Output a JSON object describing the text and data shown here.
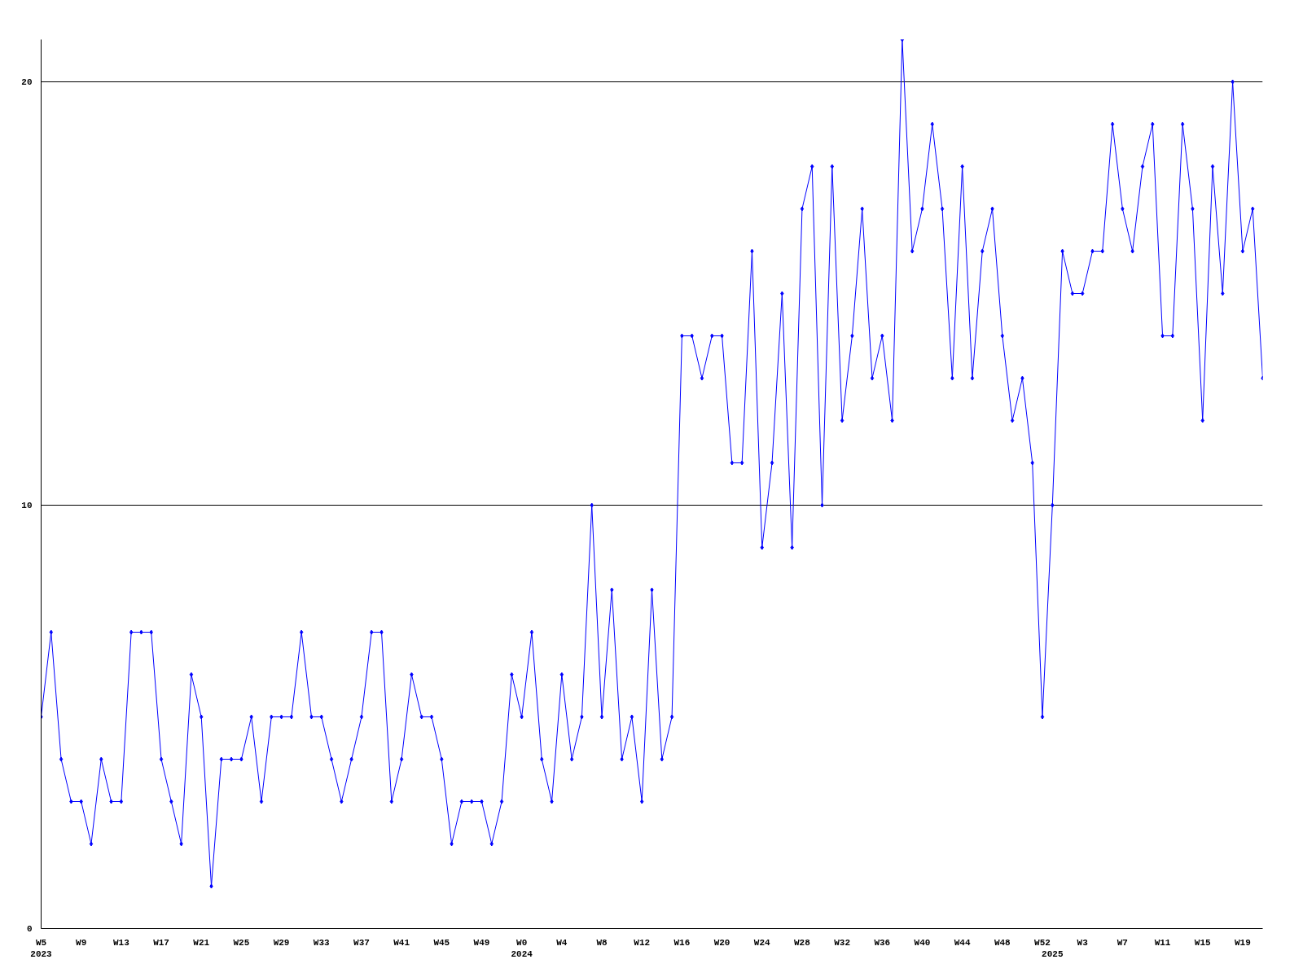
{
  "chart_data": {
    "type": "line",
    "categories": [
      "W5\n2023",
      null,
      null,
      null,
      "W9",
      null,
      null,
      null,
      "W13",
      null,
      null,
      null,
      "W17",
      null,
      null,
      null,
      "W21",
      null,
      null,
      null,
      "W25",
      null,
      null,
      null,
      "W29",
      null,
      null,
      null,
      "W33",
      null,
      null,
      null,
      "W37",
      null,
      null,
      null,
      "W41",
      null,
      null,
      null,
      "W45",
      null,
      null,
      null,
      "W49",
      null,
      null,
      null,
      "W0\n2024",
      null,
      null,
      null,
      "W4",
      null,
      null,
      null,
      "W8",
      null,
      null,
      null,
      "W12",
      null,
      null,
      null,
      "W16",
      null,
      null,
      null,
      "W20",
      null,
      null,
      null,
      "W24",
      null,
      null,
      null,
      "W28",
      null,
      null,
      null,
      "W32",
      null,
      null,
      null,
      "W36",
      null,
      null,
      null,
      "W40",
      null,
      null,
      null,
      "W44",
      null,
      null,
      null,
      "W48",
      null,
      null,
      null,
      "W52",
      "\n2025",
      null,
      null,
      "W3",
      null,
      null,
      null,
      "W7",
      null,
      null,
      null,
      "W11",
      null,
      null,
      null,
      "W15",
      null,
      null,
      null,
      "W19",
      null,
      null
    ],
    "series": [
      {
        "color": "#0000ff",
        "values": [
          5,
          7,
          4,
          3,
          3,
          2,
          4,
          3,
          3,
          7,
          7,
          7,
          4,
          3,
          2,
          6,
          5,
          1,
          4,
          4,
          4,
          5,
          3,
          5,
          5,
          5,
          7,
          5,
          5,
          4,
          3,
          4,
          5,
          7,
          7,
          3,
          4,
          6,
          5,
          5,
          4,
          2,
          3,
          3,
          3,
          2,
          3,
          6,
          5,
          7,
          4,
          3,
          6,
          4,
          5,
          10,
          5,
          8,
          4,
          5,
          3,
          8,
          4,
          5,
          14,
          14,
          13,
          14,
          14,
          11,
          11,
          16,
          9,
          11,
          15,
          9,
          17,
          18,
          10,
          18,
          12,
          14,
          17,
          13,
          14,
          12,
          21,
          16,
          17,
          19,
          17,
          13,
          18,
          13,
          16,
          17,
          14,
          12,
          13,
          11,
          5,
          10,
          16,
          15,
          15,
          16,
          16,
          19,
          17,
          16,
          18,
          19,
          14,
          14,
          19,
          17,
          12,
          18,
          15,
          20,
          16,
          17,
          13
        ]
      }
    ],
    "ylim": [
      0,
      21
    ],
    "yticks": [
      0,
      10,
      20
    ],
    "grid": "y",
    "marker": "diamond",
    "line_style": "solid"
  }
}
